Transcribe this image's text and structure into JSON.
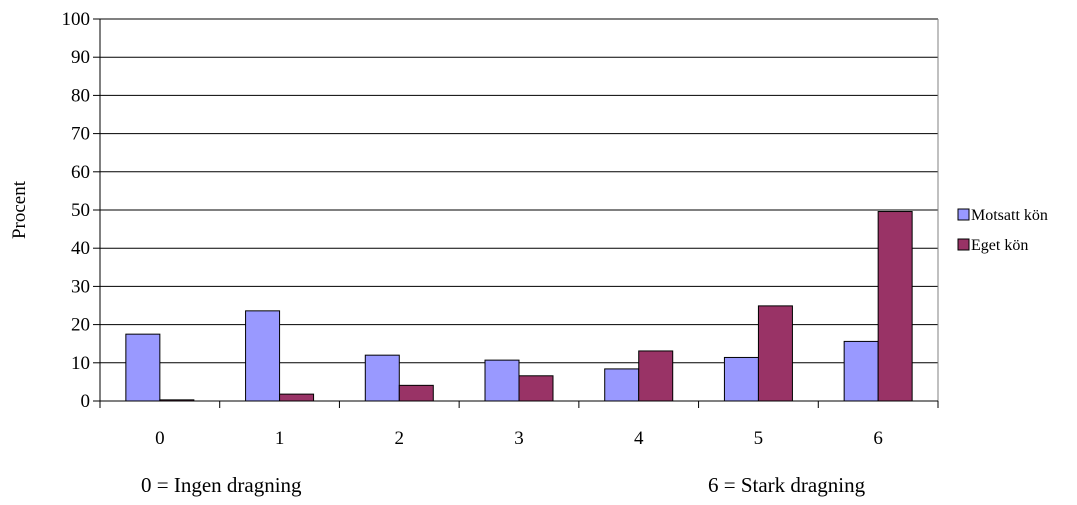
{
  "chart_data": {
    "type": "bar",
    "categories": [
      "0",
      "1",
      "2",
      "3",
      "4",
      "5",
      "6"
    ],
    "series": [
      {
        "name": "Motsatt kön",
        "color": "#9999ff",
        "values": [
          17.5,
          23.6,
          12.0,
          10.7,
          8.4,
          11.4,
          15.6
        ]
      },
      {
        "name": "Eget kön",
        "color": "#993366",
        "values": [
          0.3,
          1.8,
          4.1,
          6.6,
          13.1,
          24.9,
          49.6
        ]
      }
    ],
    "ylabel": "Procent",
    "xlabel": "",
    "ylim": [
      0,
      100
    ],
    "yticks": [
      0,
      10,
      20,
      30,
      40,
      50,
      60,
      70,
      80,
      90,
      100
    ],
    "grid": true,
    "legend_position": "right",
    "annotations": {
      "left": "0 = Ingen dragning",
      "right": "6 = Stark dragning"
    }
  }
}
